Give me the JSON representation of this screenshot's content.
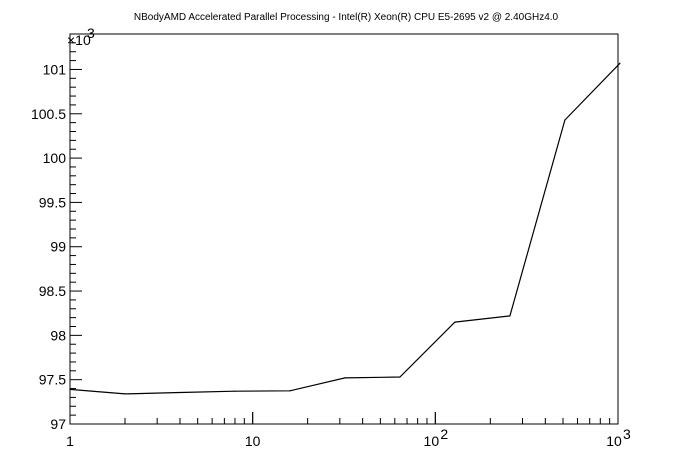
{
  "chart_data": {
    "type": "line",
    "title": "NBodyAMD Accelerated Parallel Processing - Intel(R) Xeon(R) CPU E5-2695 v2 @ 2.40GHz4.0",
    "xlabel": "",
    "ylabel": "",
    "x_scale": "log",
    "xlim": [
      1,
      1000
    ],
    "ylim": [
      97000,
      101400
    ],
    "y_multiplier_label": "×10",
    "y_multiplier_exp": "3",
    "x_ticks": [
      {
        "value": 1,
        "base": "1",
        "exp": ""
      },
      {
        "value": 10,
        "base": "10",
        "exp": ""
      },
      {
        "value": 100,
        "base": "10",
        "exp": "2"
      },
      {
        "value": 1000,
        "base": "10",
        "exp": "3"
      }
    ],
    "y_ticks": [
      {
        "value": 97000,
        "label": "97"
      },
      {
        "value": 97500,
        "label": "97.5"
      },
      {
        "value": 98000,
        "label": "98"
      },
      {
        "value": 98500,
        "label": "98.5"
      },
      {
        "value": 99000,
        "label": "99"
      },
      {
        "value": 99500,
        "label": "99.5"
      },
      {
        "value": 100000,
        "label": "100"
      },
      {
        "value": 100500,
        "label": "100.5"
      },
      {
        "value": 101000,
        "label": "101"
      }
    ],
    "grid": false,
    "series": [
      {
        "x": [
          1,
          2,
          4,
          8,
          16,
          32,
          64,
          128,
          256,
          512,
          1024
        ],
        "y": [
          97390,
          97340,
          97355,
          97370,
          97375,
          97520,
          97530,
          98150,
          98220,
          100430,
          101070
        ]
      }
    ],
    "colors": {
      "line": "#000000",
      "axis": "#000000",
      "background": "#ffffff"
    }
  }
}
